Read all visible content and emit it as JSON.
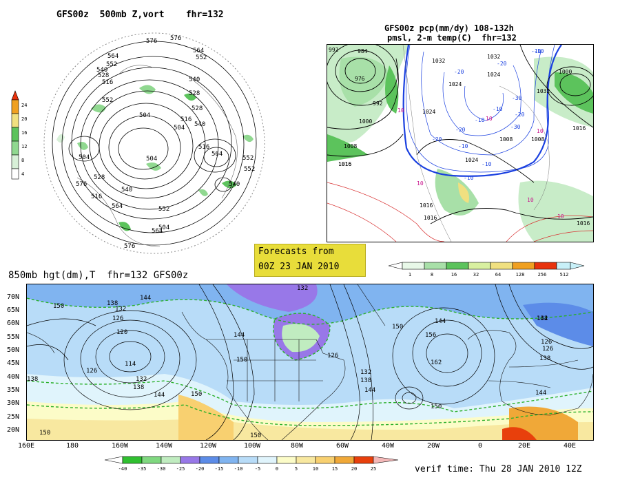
{
  "panel_500mb": {
    "title": "GFS00z  500mb Z,vort    fhr=132",
    "contour_labels": [
      "576",
      "564",
      "552",
      "540",
      "528",
      "516",
      "504",
      "576",
      "564",
      "552",
      "540",
      "528",
      "516",
      "504",
      "528",
      "516",
      "540",
      "552",
      "504",
      "516",
      "540",
      "528",
      "504",
      "552",
      "564",
      "552",
      "540",
      "576",
      "564",
      "576",
      "504",
      "552",
      "564"
    ],
    "colorbar": {
      "labels": [
        "24",
        "20",
        "16",
        "12",
        "8",
        "4"
      ],
      "colors": [
        "#e8320c",
        "#f0a020",
        "#f0e080",
        "#5cc35c",
        "#90d890",
        "#d8f0d8"
      ]
    }
  },
  "panel_precip": {
    "title_line1": "GFS00z pcp(mm/dy) 108-132h",
    "title_line2": "pmsl, 2-m temp(C)  fhr=132",
    "contour_labels": [
      "992",
      "984",
      "976",
      "992",
      "1000",
      "1008",
      "1016",
      "1032",
      "1024",
      "1024",
      "1024",
      "1032",
      "1032",
      "1024",
      "1008",
      "1016",
      "1000",
      "1016",
      "1016",
      "1016",
      "1008",
      "1016",
      "10",
      "10",
      "10",
      "10",
      "10",
      "-20",
      "-10",
      "-10",
      "-20",
      "-30",
      "-20",
      "-10",
      "-10",
      "-20",
      "-30",
      "-20",
      "-10",
      "-10",
      "10",
      "-10"
    ],
    "colorbar": {
      "labels": [
        "1",
        "8",
        "16",
        "32",
        "64",
        "128",
        "256",
        "512"
      ],
      "colors": [
        "#e8f8e8",
        "#a8e0a8",
        "#5cc35c",
        "#d8f0a0",
        "#f0e080",
        "#f0a020",
        "#e8320c",
        "#c8f0f8"
      ]
    }
  },
  "forecast_box": {
    "line1": "Forecasts from",
    "line2": "00Z 23 JAN 2010"
  },
  "panel_850mb": {
    "title": "850mb hgt(dm),T  fhr=132 GFS00z",
    "lat_labels": [
      "70N",
      "65N",
      "60N",
      "55N",
      "50N",
      "45N",
      "40N",
      "35N",
      "30N",
      "25N",
      "20N"
    ],
    "lon_labels": [
      "160E",
      "180",
      "160W",
      "140W",
      "120W",
      "100W",
      "80W",
      "60W",
      "40W",
      "20W",
      "0",
      "20E",
      "40E"
    ],
    "height_labels": [
      "150",
      "138",
      "132",
      "126",
      "120",
      "114",
      "126",
      "132",
      "138",
      "144",
      "150",
      "144",
      "144",
      "138",
      "132",
      "150",
      "126",
      "132",
      "138",
      "144",
      "150",
      "156",
      "162",
      "150",
      "144",
      "132",
      "138",
      "126",
      "144",
      "150",
      "144",
      "126",
      "150"
    ],
    "colorbar": {
      "labels": [
        "-40",
        "-35",
        "-30",
        "-25",
        "-20",
        "-15",
        "-10",
        "-5",
        "0",
        "5",
        "10",
        "15",
        "20",
        "25"
      ],
      "colors": [
        "#30c030",
        "#80d880",
        "#c0ecc0",
        "#9878e8",
        "#5c8ce8",
        "#80b4f0",
        "#b8dcf8",
        "#e0f4fc",
        "#fcfcc8",
        "#f8e8a0",
        "#f8d070",
        "#f0a838",
        "#e8400c",
        "#f4b8b8"
      ]
    }
  },
  "verif_time": "verif time: Thu 28 JAN 2010 12Z"
}
